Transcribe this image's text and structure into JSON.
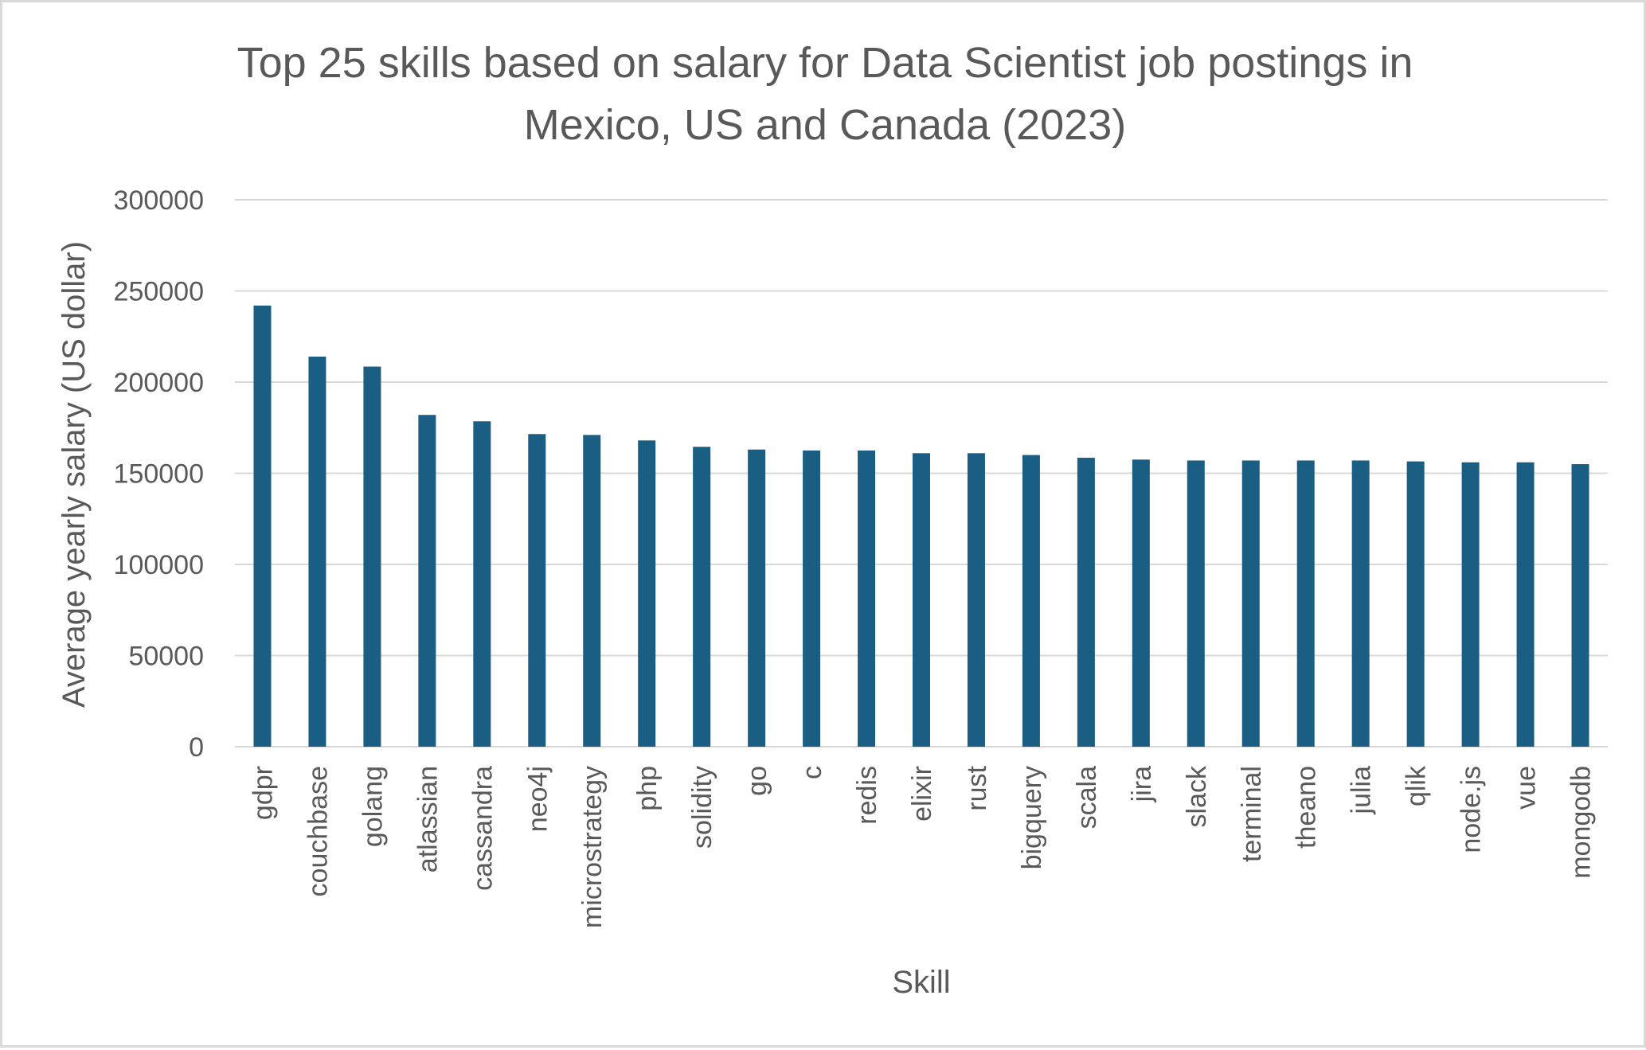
{
  "chart_data": {
    "type": "bar",
    "title_lines": [
      "Top 25 skills based on salary for Data Scientist job postings in",
      "Mexico, US and Canada (2023)"
    ],
    "xlabel": "Skill",
    "ylabel": "Average  yearly salary (US dollar)",
    "ylim": [
      0,
      300000
    ],
    "yticks": [
      "0",
      "50000",
      "100000",
      "150000",
      "200000",
      "250000",
      "300000"
    ],
    "grid": true,
    "legend": "none",
    "bar_color": "#1b5e83",
    "categories": [
      "gdpr",
      "couchbase",
      "golang",
      "atlassian",
      "cassandra",
      "neo4j",
      "microstrategy",
      "php",
      "solidity",
      "go",
      "c",
      "redis",
      "elixir",
      "rust",
      "bigquery",
      "scala",
      "jira",
      "slack",
      "terminal",
      "theano",
      "julia",
      "qlik",
      "node.js",
      "vue",
      "mongodb"
    ],
    "values": [
      242000,
      214000,
      208500,
      182000,
      178500,
      171500,
      171000,
      168000,
      164500,
      163000,
      162500,
      162500,
      161000,
      161000,
      160000,
      158500,
      157500,
      157000,
      157000,
      157000,
      157000,
      156500,
      156000,
      156000,
      155000
    ]
  }
}
